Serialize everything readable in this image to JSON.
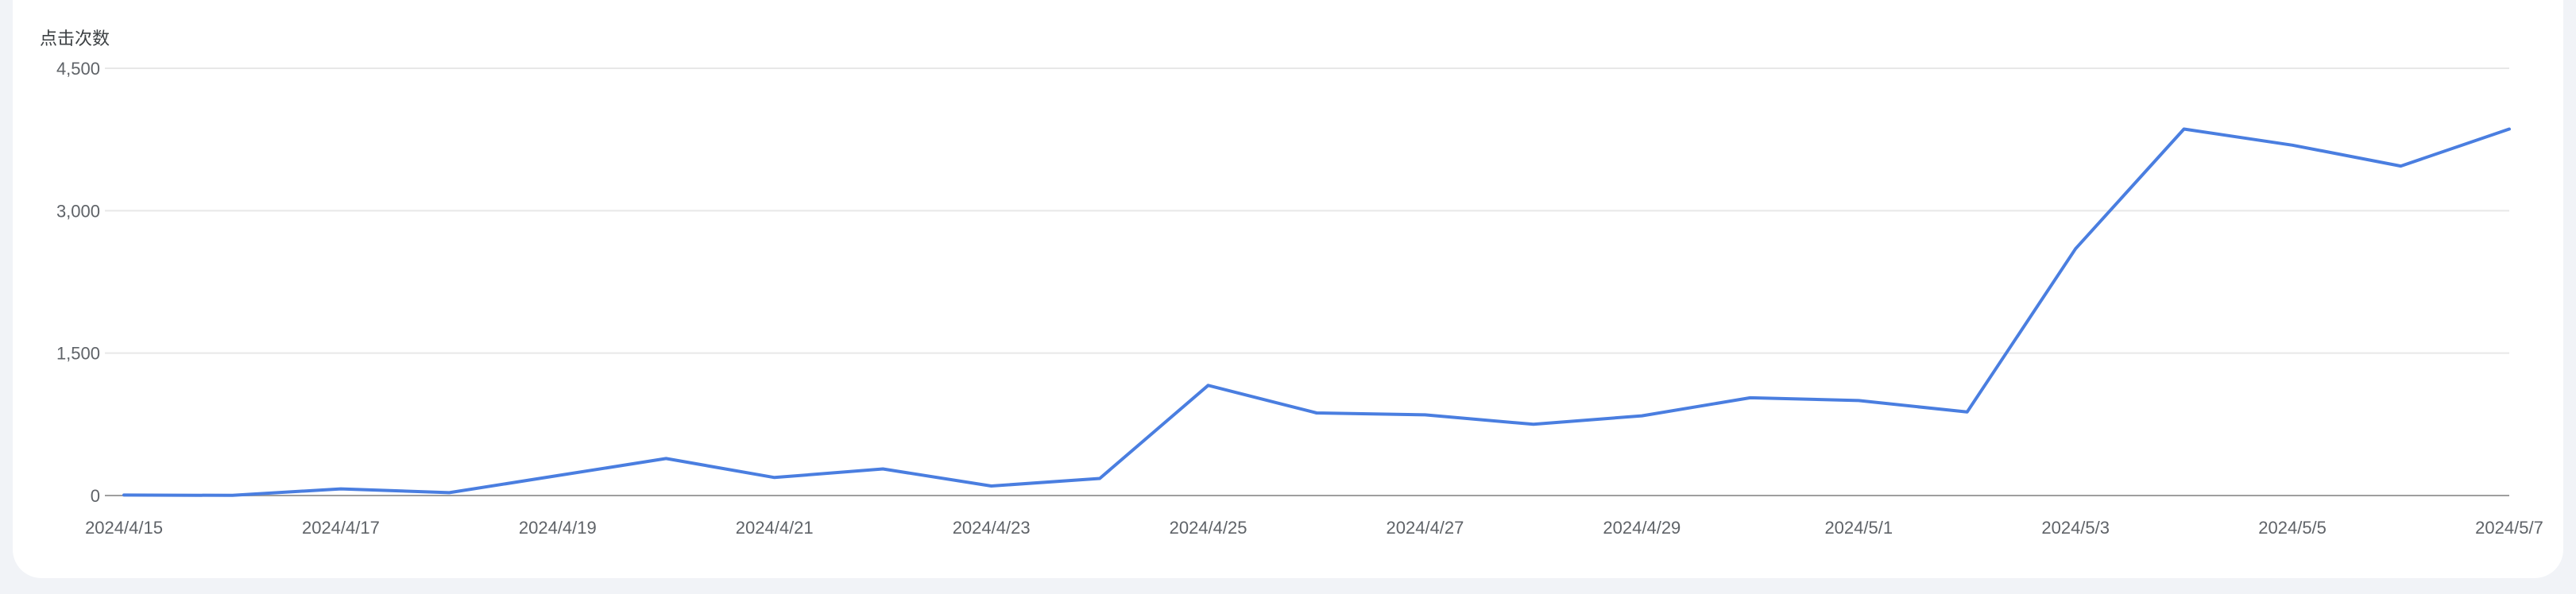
{
  "chart_data": {
    "type": "line",
    "ylabel": "点击次数",
    "xlabel": "",
    "title": "",
    "ylim": [
      0,
      4500
    ],
    "yticks": [
      0,
      1500,
      3000,
      4500
    ],
    "ytick_labels": [
      "0",
      "1,500",
      "3,000",
      "4,500"
    ],
    "grid": true,
    "x": [
      "2024/4/15",
      "2024/4/16",
      "2024/4/17",
      "2024/4/18",
      "2024/4/19",
      "2024/4/20",
      "2024/4/21",
      "2024/4/22",
      "2024/4/23",
      "2024/4/24",
      "2024/4/25",
      "2024/4/26",
      "2024/4/27",
      "2024/4/28",
      "2024/4/29",
      "2024/4/30",
      "2024/5/1",
      "2024/5/2",
      "2024/5/3",
      "2024/5/4",
      "2024/5/5",
      "2024/5/6",
      "2024/5/7"
    ],
    "xtick_labels": [
      "2024/4/15",
      "2024/4/17",
      "2024/4/19",
      "2024/4/21",
      "2024/4/23",
      "2024/4/25",
      "2024/4/27",
      "2024/4/29",
      "2024/5/1",
      "2024/5/3",
      "2024/5/5",
      "2024/5/7"
    ],
    "series": [
      {
        "color": "#4a7ee0",
        "values": [
          5,
          2,
          70,
          30,
          210,
          390,
          190,
          280,
          100,
          180,
          1160,
          870,
          850,
          750,
          840,
          1030,
          1000,
          880,
          2600,
          3860,
          3690,
          3470,
          3860
        ]
      }
    ]
  }
}
